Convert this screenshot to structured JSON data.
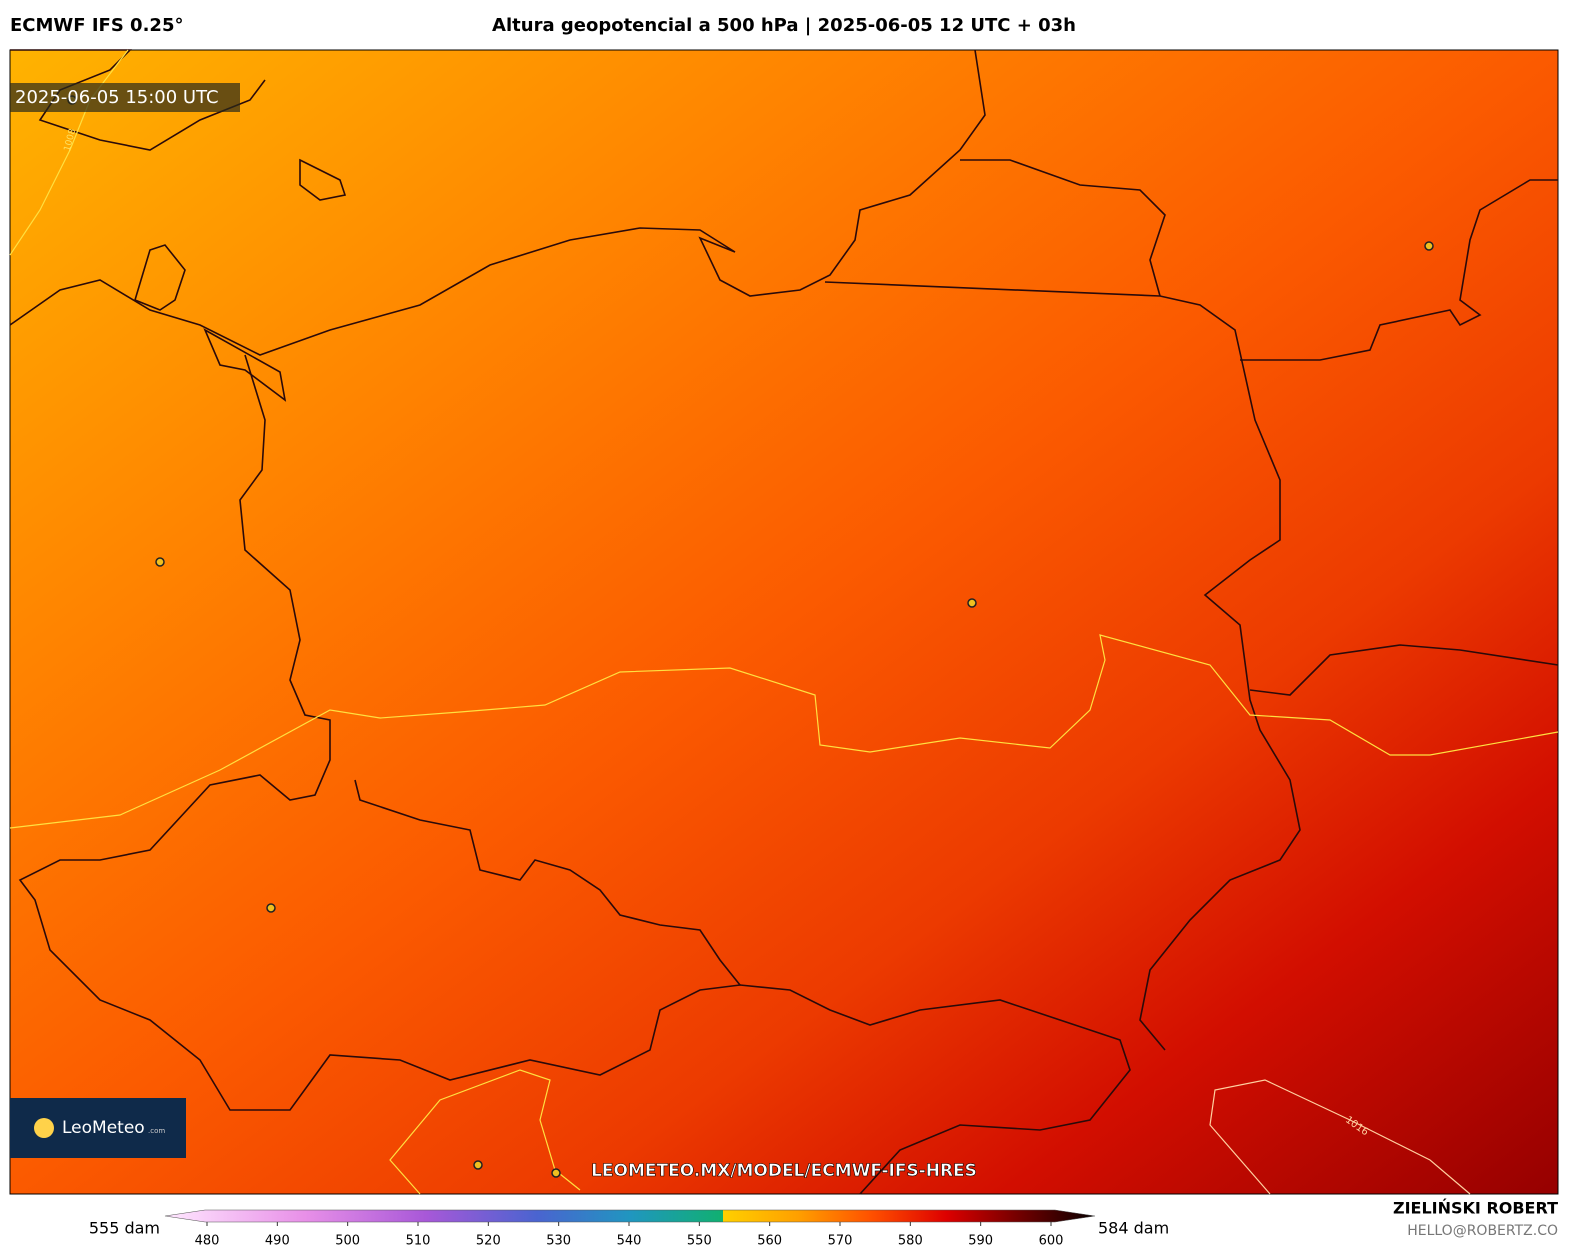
{
  "header": {
    "model": "ECMWF IFS 0.25°",
    "title": "Altura geopotencial a 500 hPa | 2025-06-05 12 UTC + 03h"
  },
  "map": {
    "timestamp": "2025-06-05 15:00 UTC",
    "contour_labels": [
      "1008",
      "1016"
    ],
    "url": "LEOMETEO.MX/MODEL/ECMWF-IFS-HRES",
    "logo": "LeoMeteo",
    "logo_suffix": ".com"
  },
  "colorbar": {
    "min_label": "555 dam",
    "max_label": "584 dam",
    "ticks": [
      480,
      490,
      500,
      510,
      520,
      530,
      540,
      550,
      560,
      570,
      580,
      590,
      600
    ]
  },
  "footer": {
    "author": "ZIELIŃSKI ROBERT",
    "email": "HELLO@ROBERTZ.CO"
  }
}
